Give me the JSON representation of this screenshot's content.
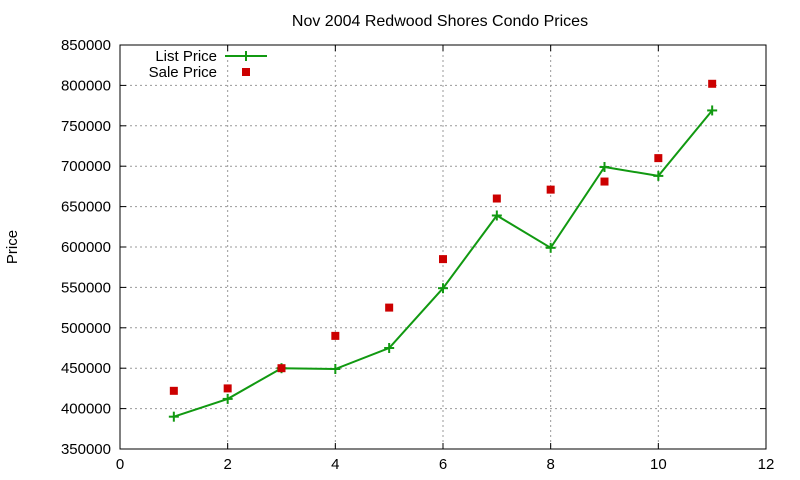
{
  "chart_data": {
    "type": "line",
    "title": "Nov 2004 Redwood Shores Condo Prices",
    "xlabel": "",
    "ylabel": "Price",
    "xlim": [
      0,
      12
    ],
    "ylim": [
      350000,
      850000
    ],
    "x_ticks": [
      0,
      2,
      4,
      6,
      8,
      10,
      12
    ],
    "y_ticks": [
      350000,
      400000,
      450000,
      500000,
      550000,
      600000,
      650000,
      700000,
      750000,
      800000,
      850000
    ],
    "grid": true,
    "legend_position": "top-left",
    "series": [
      {
        "name": "List Price",
        "style": "line-with-plus-markers",
        "color": "#119911",
        "x": [
          1,
          2,
          3,
          4,
          5,
          6,
          7,
          8,
          9,
          10,
          11
        ],
        "y": [
          390000,
          412000,
          450000,
          449000,
          475000,
          549000,
          639000,
          599000,
          699000,
          688000,
          769000
        ]
      },
      {
        "name": "Sale Price",
        "style": "square-markers",
        "color": "#cc0000",
        "x": [
          1,
          2,
          3,
          4,
          5,
          6,
          7,
          8,
          9,
          10,
          11
        ],
        "y": [
          422000,
          425000,
          450000,
          490000,
          525000,
          585000,
          660000,
          671000,
          681000,
          710000,
          802000
        ]
      }
    ]
  }
}
